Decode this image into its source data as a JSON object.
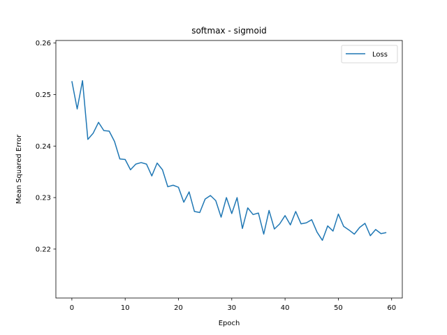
{
  "chart_data": {
    "type": "line",
    "title": "softmax - sigmoid",
    "xlabel": "Epoch",
    "ylabel": "Mean Squared Error",
    "xlim": [
      -3,
      62
    ],
    "ylim": [
      0.2105,
      0.2605
    ],
    "xticks": [
      0,
      10,
      20,
      30,
      40,
      50,
      60
    ],
    "yticks": [
      0.22,
      0.23,
      0.24,
      0.25,
      0.26
    ],
    "grid": false,
    "legend_position": "top-right",
    "series": [
      {
        "name": "Loss",
        "color": "#1f77b4",
        "x": [
          0,
          1,
          2,
          3,
          4,
          5,
          6,
          7,
          8,
          9,
          10,
          11,
          12,
          13,
          14,
          15,
          16,
          17,
          18,
          19,
          20,
          21,
          22,
          23,
          24,
          25,
          26,
          27,
          28,
          29,
          30,
          31,
          32,
          33,
          34,
          35,
          36,
          37,
          38,
          39,
          40,
          41,
          42,
          43,
          44,
          45,
          46,
          47,
          48,
          49,
          50,
          51,
          52,
          53,
          54,
          55,
          56,
          57,
          58,
          59
        ],
        "values": [
          0.2526,
          0.2472,
          0.2527,
          0.2413,
          0.2425,
          0.2446,
          0.243,
          0.2429,
          0.2409,
          0.2375,
          0.2374,
          0.2354,
          0.2365,
          0.2368,
          0.2365,
          0.2342,
          0.2367,
          0.2354,
          0.2321,
          0.2324,
          0.232,
          0.2291,
          0.2311,
          0.2273,
          0.2271,
          0.2297,
          0.2304,
          0.2294,
          0.2262,
          0.23,
          0.2269,
          0.23,
          0.224,
          0.228,
          0.2267,
          0.227,
          0.2229,
          0.2275,
          0.2239,
          0.2249,
          0.2265,
          0.2247,
          0.2273,
          0.2249,
          0.2251,
          0.2257,
          0.2233,
          0.2217,
          0.2245,
          0.2235,
          0.2268,
          0.2244,
          0.2237,
          0.2229,
          0.2242,
          0.225,
          0.2226,
          0.2238,
          0.223,
          0.2232
        ]
      }
    ]
  }
}
